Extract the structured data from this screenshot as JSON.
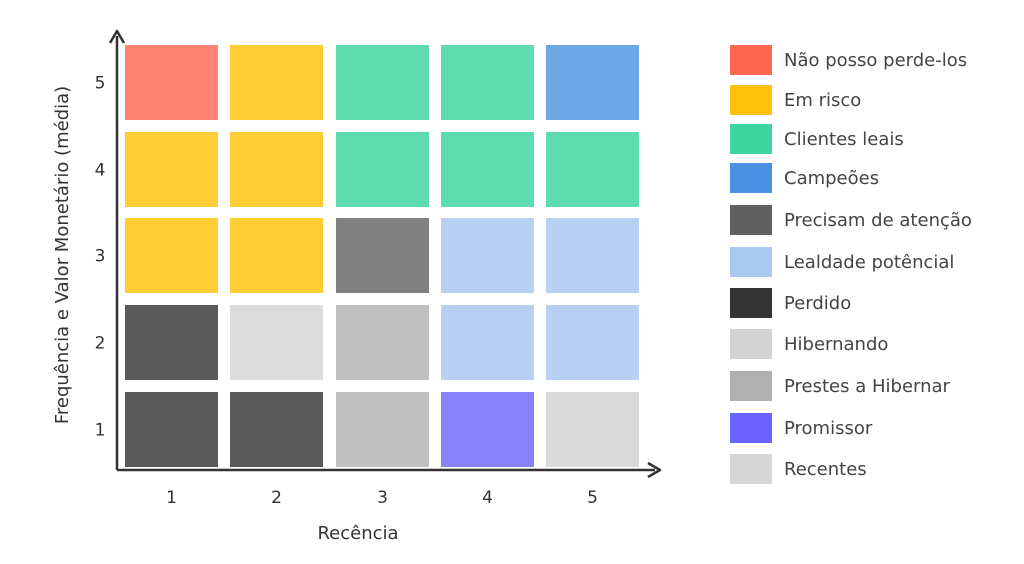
{
  "chart_data": {
    "type": "heatmap",
    "xlabel": "Recência",
    "ylabel": "Frequência e Valor Monetário (média)",
    "x_ticks": [
      "1",
      "2",
      "3",
      "4",
      "5"
    ],
    "y_ticks": [
      "1",
      "2",
      "3",
      "4",
      "5"
    ],
    "legend_position": "right",
    "segments": [
      {
        "name": "Não posso perde-los",
        "color": "#ff6650"
      },
      {
        "name": "Em risco",
        "color": "#ffc10a"
      },
      {
        "name": "Clientes leais",
        "color": "#3dd5a0"
      },
      {
        "name": "Campeões",
        "color": "#4a90e2"
      },
      {
        "name": "Precisam de atenção",
        "color": "#606060"
      },
      {
        "name": "Lealdade potêncial",
        "color": "#a9c9f2"
      },
      {
        "name": "Perdido",
        "color": "#333333"
      },
      {
        "name": "Hibernando",
        "color": "#d3d3d3"
      },
      {
        "name": "Prestes a Hibernar",
        "color": "#b0b0b0"
      },
      {
        "name": "Promissor",
        "color": "#6b62ff"
      },
      {
        "name": "Recentes",
        "color": "#d6d6d6"
      }
    ],
    "cells": [
      {
        "x": 1,
        "y": 5,
        "segment": "Não posso perde-los",
        "fill": "#ff8473"
      },
      {
        "x": 2,
        "y": 5,
        "segment": "Em risco",
        "fill": "#ffcd36"
      },
      {
        "x": 3,
        "y": 5,
        "segment": "Clientes leais",
        "fill": "#5ddcb0"
      },
      {
        "x": 4,
        "y": 5,
        "segment": "Clientes leais",
        "fill": "#5ddcb0"
      },
      {
        "x": 5,
        "y": 5,
        "segment": "Campeões",
        "fill": "#6fa6e6"
      },
      {
        "x": 1,
        "y": 4,
        "segment": "Em risco",
        "fill": "#ffcd36"
      },
      {
        "x": 2,
        "y": 4,
        "segment": "Em risco",
        "fill": "#ffcd36"
      },
      {
        "x": 3,
        "y": 4,
        "segment": "Clientes leais",
        "fill": "#5ddcb0"
      },
      {
        "x": 4,
        "y": 4,
        "segment": "Clientes leais",
        "fill": "#5ddcb0"
      },
      {
        "x": 5,
        "y": 4,
        "segment": "Clientes leais",
        "fill": "#5ddcb0"
      },
      {
        "x": 1,
        "y": 3,
        "segment": "Em risco",
        "fill": "#ffcd36"
      },
      {
        "x": 2,
        "y": 3,
        "segment": "Em risco",
        "fill": "#ffcd36"
      },
      {
        "x": 3,
        "y": 3,
        "segment": "Precisam de atenção",
        "fill": "#808080"
      },
      {
        "x": 4,
        "y": 3,
        "segment": "Lealdade potêncial",
        "fill": "#b7d1f2"
      },
      {
        "x": 5,
        "y": 3,
        "segment": "Lealdade potêncial",
        "fill": "#b7d1f2"
      },
      {
        "x": 1,
        "y": 2,
        "segment": "Perdido",
        "fill": "#5a5a5a"
      },
      {
        "x": 2,
        "y": 2,
        "segment": "Hibernando",
        "fill": "#dcdcdc"
      },
      {
        "x": 3,
        "y": 2,
        "segment": "Prestes a Hibernar",
        "fill": "#c0c0c0"
      },
      {
        "x": 4,
        "y": 2,
        "segment": "Lealdade potêncial",
        "fill": "#b7d1f2"
      },
      {
        "x": 5,
        "y": 2,
        "segment": "Lealdade potêncial",
        "fill": "#b7d1f2"
      },
      {
        "x": 1,
        "y": 1,
        "segment": "Perdido",
        "fill": "#5a5a5a"
      },
      {
        "x": 2,
        "y": 1,
        "segment": "Perdido",
        "fill": "#5a5a5a"
      },
      {
        "x": 3,
        "y": 1,
        "segment": "Prestes a Hibernar",
        "fill": "#c0c0c0"
      },
      {
        "x": 4,
        "y": 1,
        "segment": "Promissor",
        "fill": "#8882fb"
      },
      {
        "x": 5,
        "y": 1,
        "segment": "Recentes",
        "fill": "#dadada"
      }
    ]
  }
}
